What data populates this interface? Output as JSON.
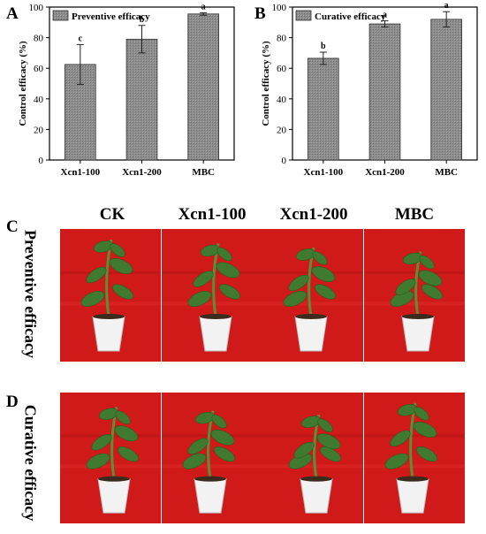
{
  "panels": {
    "a": "A",
    "b": "B",
    "c": "C",
    "d": "D"
  },
  "photo_columns": [
    "CK",
    "Xcn1-100",
    "Xcn1-200",
    "MBC"
  ],
  "photo_rows": [
    "Preventive efficacy",
    "Curative efficacy"
  ],
  "colors": {
    "bar_fill": "#8c8c8c",
    "photo_background": "#d01a1a",
    "leaf": "#3f7a2f",
    "pot": "#f2f2f2"
  },
  "chart_data": [
    {
      "type": "bar",
      "legend": "Preventive efficacy",
      "legend_position": "top-left",
      "ylabel": "Control efficacy (%)",
      "ylim": [
        0,
        100
      ],
      "yticks": [
        "0",
        "20",
        "40",
        "60",
        "80",
        "100"
      ],
      "categories": [
        "Xcn1-100",
        "Xcn1-200",
        "MBC"
      ],
      "values": [
        62.5,
        79,
        95.5
      ],
      "errors": [
        13,
        9,
        0.8
      ],
      "significance": [
        "c",
        "b",
        "a"
      ]
    },
    {
      "type": "bar",
      "legend": "Curative efficacy",
      "legend_position": "top-left",
      "ylabel": "Control efficacy (%)",
      "ylim": [
        0,
        100
      ],
      "yticks": [
        "0",
        "20",
        "40",
        "60",
        "80",
        "100"
      ],
      "categories": [
        "Xcn1-100",
        "Xcn1-200",
        "MBC"
      ],
      "values": [
        66.5,
        89,
        92
      ],
      "errors": [
        4,
        2,
        5
      ],
      "significance": [
        "b",
        "a",
        "a"
      ]
    }
  ]
}
